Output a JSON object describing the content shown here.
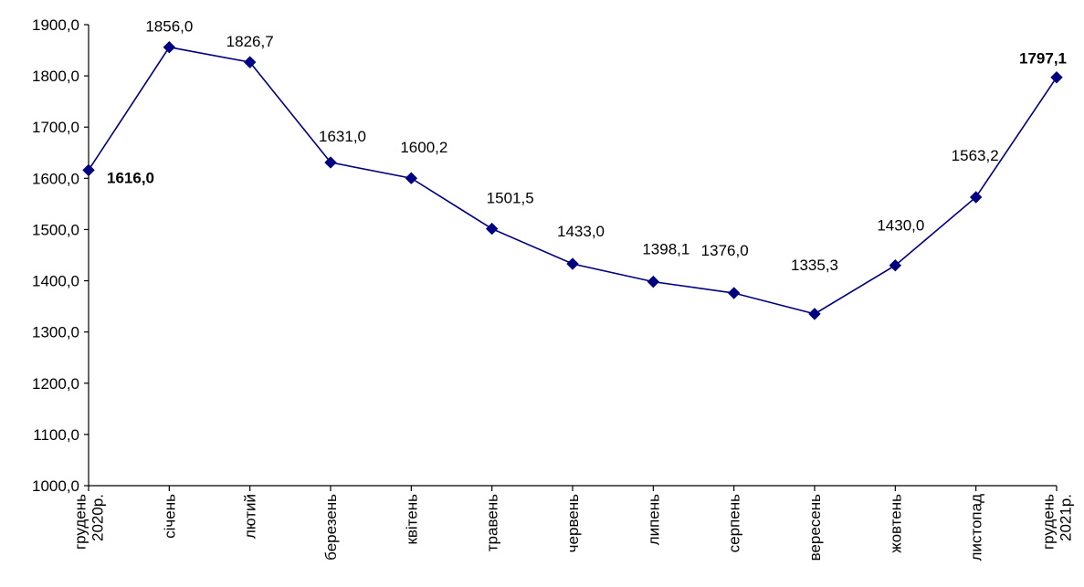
{
  "chart_data": {
    "type": "line",
    "title": "",
    "xlabel": "",
    "ylabel": "",
    "ylim": [
      1000,
      1900
    ],
    "y_ticks": [
      "1000,0",
      "1100,0",
      "1200,0",
      "1300,0",
      "1400,0",
      "1500,0",
      "1600,0",
      "1700,0",
      "1800,0",
      "1900,0"
    ],
    "grid": false,
    "legend": "none",
    "categories": [
      [
        "грудень",
        "2020р."
      ],
      [
        "січень"
      ],
      [
        "лютий"
      ],
      [
        "березень"
      ],
      [
        "квітень"
      ],
      [
        "травень"
      ],
      [
        "червень"
      ],
      [
        "липень"
      ],
      [
        "серпень"
      ],
      [
        "вересень"
      ],
      [
        "жовтень"
      ],
      [
        "листопад"
      ],
      [
        "грудень",
        "2021р."
      ]
    ],
    "series": [
      {
        "values": [
          1616.0,
          1856.0,
          1826.7,
          1631.0,
          1600.2,
          1501.5,
          1433.0,
          1398.1,
          1376.0,
          1335.3,
          1430.0,
          1563.2,
          1797.1
        ],
        "labels": [
          "1616,0",
          "1856,0",
          "1826,7",
          "1631,0",
          "1600,2",
          "1501,5",
          "1433,0",
          "1398,1",
          "1376,0",
          "1335,3",
          "1430,0",
          "1563,2",
          "1797,1"
        ],
        "bold_labels": [
          0,
          12
        ],
        "color": "#000080",
        "marker": "diamond"
      }
    ]
  }
}
